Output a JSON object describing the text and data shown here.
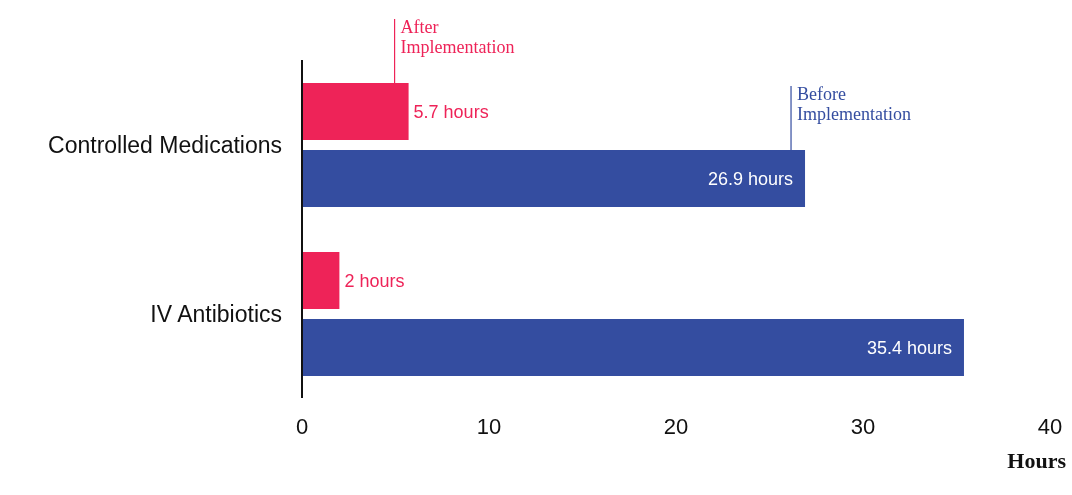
{
  "chart_data": {
    "type": "bar",
    "orientation": "horizontal",
    "categories": [
      "Controlled Medications",
      "IV Antibiotics"
    ],
    "series": [
      {
        "name": "After Implementation",
        "color": "#ee2358",
        "values": [
          5.7,
          2
        ],
        "value_labels": [
          "5.7 hours",
          "2 hours"
        ]
      },
      {
        "name": "Before Implementation",
        "color": "#344da0",
        "values": [
          26.9,
          35.4
        ],
        "value_labels": [
          "26.9 hours",
          "35.4 hours"
        ]
      }
    ],
    "xlabel": "Hours",
    "xlim": [
      0,
      40
    ],
    "xticks": [
      0,
      10,
      20,
      30,
      40
    ],
    "grid": false,
    "legend": false
  }
}
